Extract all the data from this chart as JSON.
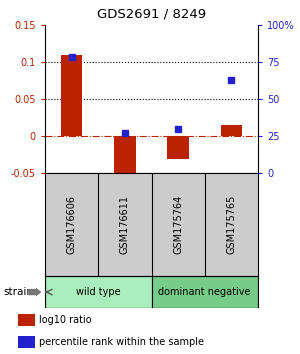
{
  "title": "GDS2691 / 8249",
  "samples": [
    "GSM176606",
    "GSM176611",
    "GSM175764",
    "GSM175765"
  ],
  "log10_ratio": [
    0.11,
    -0.065,
    -0.03,
    0.015
  ],
  "percentile_rank": [
    78,
    27,
    30,
    63
  ],
  "bar_color": "#bb2200",
  "dot_color": "#2222cc",
  "ylim_left": [
    -0.05,
    0.15
  ],
  "ylim_right": [
    0,
    100
  ],
  "yticks_left": [
    -0.05,
    0,
    0.05,
    0.1,
    0.15
  ],
  "yticks_right": [
    0,
    25,
    50,
    75,
    100
  ],
  "ytick_labels_left": [
    "-0.05",
    "0",
    "0.05",
    "0.1",
    "0.15"
  ],
  "ytick_labels_right": [
    "0",
    "25",
    "50",
    "75",
    "100%"
  ],
  "hlines_dotted": [
    0.05,
    0.1
  ],
  "hline_dashdot_color": "#bb2200",
  "groups": [
    {
      "label": "wild type",
      "samples_range": [
        0,
        1
      ],
      "color": "#aaeebb"
    },
    {
      "label": "dominant negative",
      "samples_range": [
        2,
        3
      ],
      "color": "#77cc88"
    }
  ],
  "strain_label": "strain",
  "legend_bar_label": "log10 ratio",
  "legend_dot_label": "percentile rank within the sample",
  "background_color": "#ffffff",
  "label_box_color": "#cccccc",
  "plot_bg_color": "#ffffff"
}
